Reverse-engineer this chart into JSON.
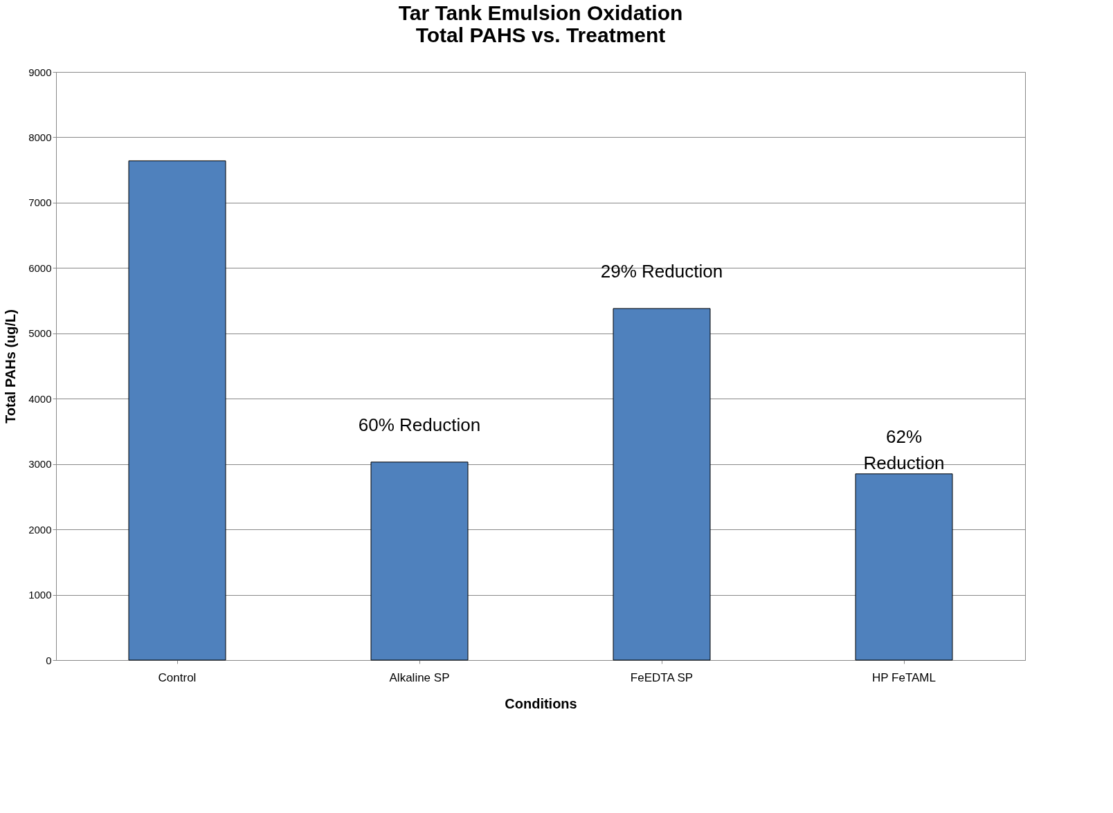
{
  "chart_data": {
    "type": "bar",
    "title": [
      "Tar Tank Emulsion Oxidation",
      "Total PAHS vs. Treatment"
    ],
    "xlabel": "Conditions",
    "ylabel": "Total PAHs (ug/L)",
    "categories": [
      "Control",
      "Alkaline SP",
      "FeEDTA SP",
      "HP FeTAML"
    ],
    "values": [
      7640,
      3030,
      5380,
      2850
    ],
    "color": "#4f81bd",
    "ylim": [
      0,
      9000
    ],
    "yticks": [
      0,
      1000,
      2000,
      3000,
      4000,
      5000,
      6000,
      7000,
      8000,
      9000
    ],
    "grid": "y",
    "annotations": [
      "60% Reduction",
      "29% Reduction",
      "62%\nReduction"
    ]
  }
}
